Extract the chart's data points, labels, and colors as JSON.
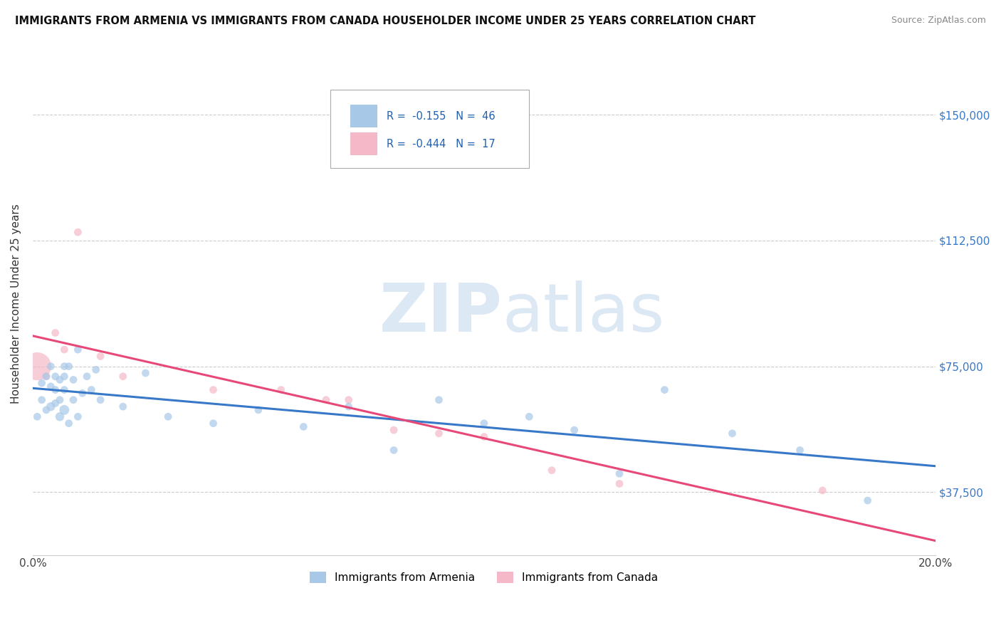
{
  "title": "IMMIGRANTS FROM ARMENIA VS IMMIGRANTS FROM CANADA HOUSEHOLDER INCOME UNDER 25 YEARS CORRELATION CHART",
  "source": "Source: ZipAtlas.com",
  "ylabel": "Householder Income Under 25 years",
  "xlim": [
    0.0,
    0.2
  ],
  "ylim": [
    18750,
    168750
  ],
  "yticks": [
    37500,
    75000,
    112500,
    150000
  ],
  "ytick_labels": [
    "$37,500",
    "$75,000",
    "$112,500",
    "$150,000"
  ],
  "xticks": [
    0.0,
    0.05,
    0.1,
    0.15,
    0.2
  ],
  "xtick_labels": [
    "0.0%",
    "",
    "",
    "",
    "20.0%"
  ],
  "watermark_zip": "ZIP",
  "watermark_atlas": "atlas",
  "legend_val1": "-0.155",
  "legend_n1": "46",
  "legend_val2": "-0.444",
  "legend_n2": "17",
  "color_armenia": "#a8c8e8",
  "color_canada": "#f4b8c8",
  "color_line_armenia": "#3878c8",
  "color_line_canada": "#e84878",
  "armenia_x": [
    0.001,
    0.002,
    0.002,
    0.003,
    0.003,
    0.004,
    0.004,
    0.004,
    0.005,
    0.005,
    0.005,
    0.006,
    0.006,
    0.006,
    0.007,
    0.007,
    0.007,
    0.007,
    0.008,
    0.008,
    0.009,
    0.009,
    0.01,
    0.01,
    0.011,
    0.012,
    0.013,
    0.014,
    0.015,
    0.02,
    0.025,
    0.03,
    0.04,
    0.05,
    0.06,
    0.07,
    0.08,
    0.09,
    0.1,
    0.11,
    0.12,
    0.13,
    0.14,
    0.155,
    0.17,
    0.185
  ],
  "armenia_y": [
    60000,
    70000,
    65000,
    72000,
    62000,
    75000,
    69000,
    63000,
    68000,
    64000,
    72000,
    71000,
    65000,
    60000,
    75000,
    68000,
    72000,
    62000,
    75000,
    58000,
    71000,
    65000,
    80000,
    60000,
    67000,
    72000,
    68000,
    74000,
    65000,
    63000,
    73000,
    60000,
    58000,
    62000,
    57000,
    63000,
    50000,
    65000,
    58000,
    60000,
    56000,
    43000,
    68000,
    55000,
    50000,
    35000
  ],
  "armenia_sizes": [
    60,
    60,
    60,
    60,
    60,
    60,
    60,
    80,
    60,
    60,
    60,
    60,
    60,
    80,
    60,
    60,
    60,
    100,
    60,
    60,
    60,
    60,
    60,
    60,
    60,
    60,
    60,
    60,
    60,
    60,
    60,
    60,
    60,
    60,
    60,
    60,
    60,
    60,
    60,
    60,
    60,
    60,
    60,
    60,
    60,
    60
  ],
  "canada_x": [
    0.001,
    0.003,
    0.005,
    0.007,
    0.01,
    0.015,
    0.02,
    0.04,
    0.055,
    0.065,
    0.07,
    0.08,
    0.09,
    0.1,
    0.115,
    0.13,
    0.175
  ],
  "canada_y": [
    75000,
    72000,
    85000,
    80000,
    115000,
    78000,
    72000,
    68000,
    68000,
    65000,
    65000,
    56000,
    55000,
    54000,
    44000,
    40000,
    38000
  ],
  "canada_sizes": [
    800,
    60,
    60,
    60,
    60,
    60,
    60,
    60,
    60,
    60,
    60,
    60,
    60,
    60,
    60,
    60,
    60
  ]
}
